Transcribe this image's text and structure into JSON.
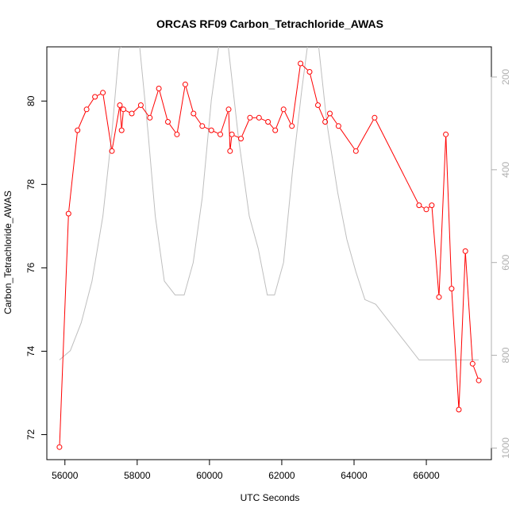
{
  "chart_data": {
    "type": "line",
    "title": "ORCAS RF09 Carbon_Tetrachloride_AWAS",
    "xlabel": "UTC Seconds",
    "ylabel": "Carbon_Tetrachloride_AWAS",
    "xlim": [
      55500,
      67800
    ],
    "ylim": [
      71.4,
      81.3
    ],
    "x_ticks": [
      56000,
      58000,
      60000,
      62000,
      64000,
      66000
    ],
    "y_ticks": [
      72,
      74,
      76,
      78,
      80
    ],
    "y2_ticks": [
      200,
      400,
      600,
      800,
      1000
    ],
    "y2_lim": [
      1025,
      135
    ],
    "grid": false,
    "colors": {
      "primary": "#ff0000",
      "secondary": "#bebebe"
    },
    "series": [
      {
        "color": "#ff0000",
        "marker": "open-circle",
        "axis": "left",
        "x": [
          55850,
          56100,
          56350,
          56600,
          56830,
          57050,
          57300,
          57520,
          57570,
          57620,
          57850,
          58100,
          58350,
          58600,
          58850,
          59100,
          59330,
          59560,
          59800,
          60050,
          60300,
          60530,
          60570,
          60620,
          60870,
          61120,
          61370,
          61620,
          61820,
          62050,
          62280,
          62520,
          62770,
          63000,
          63200,
          63330,
          63570,
          64050,
          64570,
          65800,
          66000,
          66150,
          66350,
          66540,
          66700,
          66900,
          67080,
          67280,
          67450
        ],
        "y": [
          71.7,
          77.3,
          79.3,
          79.8,
          80.1,
          80.2,
          78.8,
          79.9,
          79.3,
          79.8,
          79.7,
          79.9,
          79.6,
          80.3,
          79.5,
          79.2,
          80.4,
          79.7,
          79.4,
          79.3,
          79.2,
          79.8,
          78.8,
          79.2,
          79.1,
          79.6,
          79.6,
          79.5,
          79.3,
          79.8,
          79.4,
          80.9,
          80.7,
          79.9,
          79.5,
          79.7,
          79.4,
          78.8,
          79.6,
          77.5,
          77.4,
          77.5,
          75.3,
          79.2,
          75.5,
          72.6,
          76.4,
          73.7,
          73.3
        ]
      },
      {
        "color": "#bebebe",
        "axis": "right",
        "x": [
          55850,
          56150,
          56450,
          56750,
          57050,
          57300,
          57500,
          57800,
          58050,
          58300,
          58500,
          58750,
          59050,
          59300,
          59550,
          59800,
          60050,
          60300,
          60500,
          60800,
          61100,
          61350,
          61600,
          61800,
          62050,
          62300,
          62550,
          62750,
          63000,
          63250,
          63550,
          63800,
          64050,
          64300,
          64600,
          65800,
          66200,
          66600,
          67000,
          67450
        ],
        "y": [
          810,
          790,
          730,
          640,
          500,
          320,
          140,
          110,
          120,
          320,
          500,
          640,
          670,
          670,
          600,
          460,
          250,
          110,
          120,
          330,
          500,
          570,
          670,
          670,
          600,
          400,
          230,
          110,
          120,
          300,
          450,
          550,
          620,
          680,
          690,
          810,
          810,
          810,
          810,
          810
        ]
      }
    ]
  }
}
